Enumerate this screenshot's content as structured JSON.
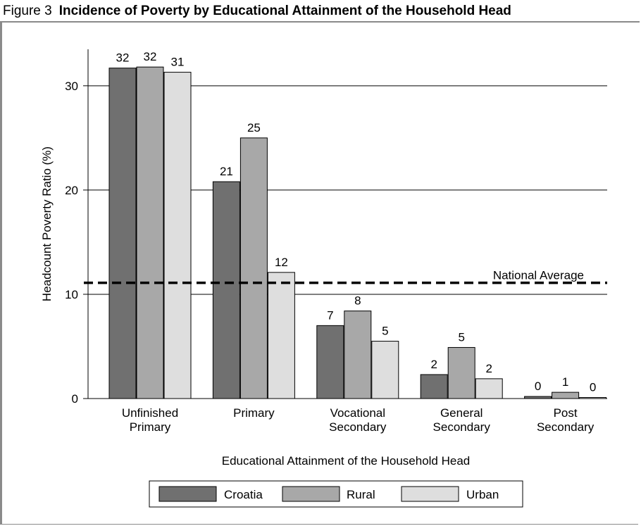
{
  "figure": {
    "number": "Figure 3",
    "title": "Incidence of Poverty by Educational Attainment of the Household Head"
  },
  "colors": {
    "Croatia": "#707070",
    "Rural": "#a8a8a8",
    "Urban": "#dedede"
  },
  "chart_data": {
    "type": "bar",
    "categories": [
      [
        "Unfinished",
        "Primary"
      ],
      [
        "Primary"
      ],
      [
        "Vocational",
        "Secondary"
      ],
      [
        "General",
        "Secondary"
      ],
      [
        "Post",
        "Secondary"
      ]
    ],
    "series": [
      {
        "name": "Croatia",
        "values": [
          31.7,
          20.8,
          7.0,
          2.3,
          0.2
        ],
        "labels": [
          "32",
          "21",
          "7",
          "2",
          "0"
        ]
      },
      {
        "name": "Rural",
        "values": [
          31.8,
          25.0,
          8.4,
          4.9,
          0.6
        ],
        "labels": [
          "32",
          "25",
          "8",
          "5",
          "1"
        ]
      },
      {
        "name": "Urban",
        "values": [
          31.3,
          12.1,
          5.5,
          1.9,
          0.1
        ],
        "labels": [
          "31",
          "12",
          "5",
          "2",
          "0"
        ]
      }
    ],
    "xlabel": "Educational Attainment of the Household Head",
    "ylabel": "Headcount Poverty Ratio (%)",
    "ylim": [
      0,
      33.5
    ],
    "yticks": [
      0,
      10,
      20,
      30
    ],
    "grid": true,
    "reference_line": {
      "label": "National Average",
      "value": 11.1,
      "style": "dashed"
    },
    "legend": "bottom-center"
  }
}
